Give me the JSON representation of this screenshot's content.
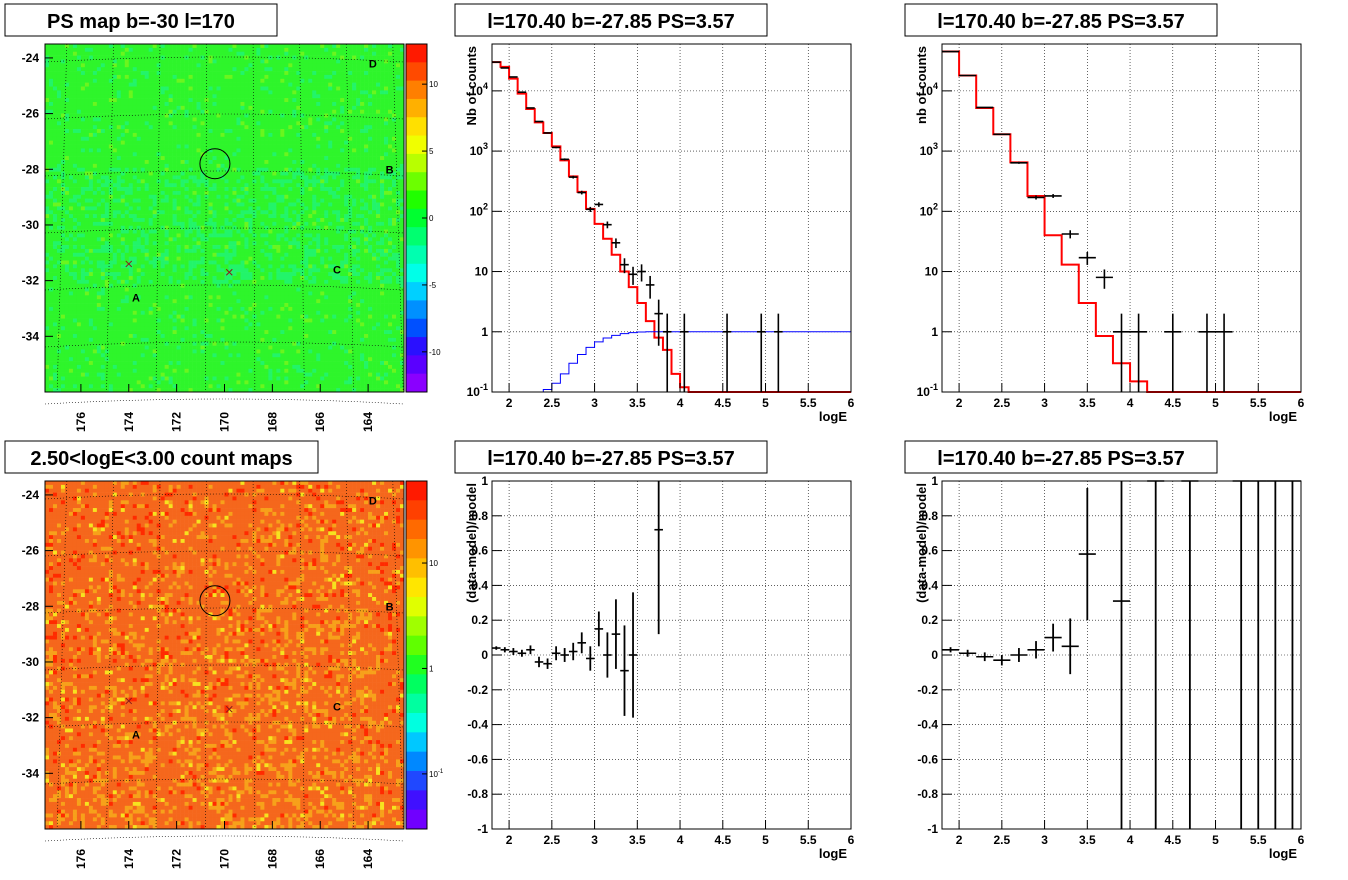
{
  "chart_data": [
    {
      "type": "heatmap",
      "title": "PS map b=-30 l=170",
      "x_tick_labels": [
        "176",
        "174",
        "172",
        "170",
        "168",
        "166",
        "164"
      ],
      "y_tick_labels": [
        "-24",
        "-26",
        "-28",
        "-30",
        "-32",
        "-34"
      ],
      "xlim": [
        177.5,
        162.5
      ],
      "ylim": [
        -36,
        -23.5
      ],
      "colorbar_ticks": [
        "10",
        "5",
        "0",
        "-5",
        "-10"
      ],
      "colorbar_range": [
        -13,
        13
      ],
      "colors": {
        "base": "#2ef52b",
        "cool": "#22f46a",
        "warm": "#6bf51e",
        "marker": "#8b1a1a"
      },
      "markers": [
        {
          "label": "D",
          "x": 163.8,
          "y": -24.2
        },
        {
          "label": "B",
          "x": 163.1,
          "y": -28.0
        },
        {
          "label": "C",
          "x": 165.3,
          "y": -31.6
        },
        {
          "label": "A",
          "x": 173.7,
          "y": -32.6
        }
      ],
      "crosses": [
        {
          "x": 174.0,
          "y": -31.4
        },
        {
          "x": 169.8,
          "y": -31.7
        }
      ],
      "circle": {
        "x": 170.4,
        "y": -27.8
      }
    },
    {
      "type": "line",
      "title": "l=170.40 b=-27.85 PS=3.57",
      "xlabel": "logE",
      "ylabel": "Nb of counts",
      "yscale": "log",
      "xlim": [
        1.8,
        6
      ],
      "ylim": [
        0.1,
        60000
      ],
      "x_tick_labels": [
        "2",
        "2.5",
        "3",
        "3.5",
        "4",
        "4.5",
        "5",
        "5.5",
        "6"
      ],
      "y_tick_labels": [
        "10^{-1}",
        "1",
        "10",
        "10^{2}",
        "10^{3}",
        "10^{4}"
      ],
      "colors": {
        "model": "#ff0000",
        "source": "#0000ff",
        "data": "#000000"
      },
      "series": [
        {
          "kind": "step",
          "x_start": 1.8,
          "width": 0.1,
          "values": [
            30000,
            25000,
            16000,
            9000,
            5000,
            3000,
            2000,
            1200,
            700,
            380,
            210,
            110,
            62,
            35,
            19,
            10,
            5.5,
            3,
            1.5,
            0.8,
            0.5,
            0.2,
            0.12,
            0.1,
            0.1,
            0.1,
            0.1,
            0.1,
            0.1,
            0.1,
            0.1,
            0.1,
            0.1,
            0.1,
            0.1,
            0.1,
            0.1,
            0.1,
            0.1,
            0.1,
            0.1,
            0.1
          ]
        },
        {
          "kind": "step",
          "x_start": 1.8,
          "width": 0.1,
          "values": [
            0.08,
            0.08,
            0.08,
            0.08,
            0.08,
            0.09,
            0.11,
            0.14,
            0.2,
            0.3,
            0.42,
            0.55,
            0.68,
            0.79,
            0.87,
            0.93,
            0.97,
            0.99,
            1,
            1,
            1,
            1,
            1,
            1,
            1,
            1,
            1,
            1,
            1,
            1,
            1,
            1,
            1,
            1,
            1,
            1,
            1,
            1,
            1,
            1,
            1,
            1
          ]
        },
        {
          "kind": "errorbar",
          "points": [
            [
              1.85,
              30000
            ],
            [
              1.95,
              24000
            ],
            [
              2.05,
              17000
            ],
            [
              2.15,
              9500
            ],
            [
              2.25,
              5200
            ],
            [
              2.35,
              3100
            ],
            [
              2.45,
              2000
            ],
            [
              2.55,
              1150
            ],
            [
              2.65,
              730
            ],
            [
              2.75,
              370
            ],
            [
              2.85,
              205
            ],
            [
              2.95,
              108
            ],
            [
              3.05,
              130
            ],
            [
              3.15,
              60
            ],
            [
              3.25,
              30
            ],
            [
              3.35,
              13
            ],
            [
              3.45,
              9
            ],
            [
              3.55,
              10
            ],
            [
              3.65,
              6
            ],
            [
              3.75,
              2
            ],
            [
              3.85,
              1
            ],
            [
              4.05,
              1
            ],
            [
              4.55,
              1
            ],
            [
              4.95,
              1
            ],
            [
              5.15,
              1
            ]
          ],
          "xerr": 0.05
        }
      ]
    },
    {
      "type": "line",
      "title": "l=170.40 b=-27.85 PS=3.57",
      "xlabel": "logE",
      "ylabel": "nb of counts",
      "yscale": "log",
      "xlim": [
        1.8,
        6
      ],
      "ylim": [
        0.1,
        60000
      ],
      "x_tick_labels": [
        "2",
        "2.5",
        "3",
        "3.5",
        "4",
        "4.5",
        "5",
        "5.5",
        "6"
      ],
      "y_tick_labels": [
        "10^{-1}",
        "1",
        "10",
        "10^{2}",
        "10^{3}",
        "10^{4}"
      ],
      "colors": {
        "model": "#ff0000",
        "data": "#000000"
      },
      "series": [
        {
          "kind": "step",
          "x_start": 1.8,
          "width": 0.2,
          "values": [
            45000,
            18000,
            5200,
            1900,
            650,
            180,
            40,
            13,
            3,
            0.85,
            0.3,
            0.15,
            0.1,
            0.1,
            0.1,
            0.1,
            0.1,
            0.1,
            0.1,
            0.1,
            0.1
          ]
        },
        {
          "kind": "errorbar",
          "points": [
            [
              1.9,
              45000
            ],
            [
              2.1,
              18000
            ],
            [
              2.3,
              5300
            ],
            [
              2.5,
              1900
            ],
            [
              2.7,
              640
            ],
            [
              2.9,
              170
            ],
            [
              3.1,
              180
            ],
            [
              3.3,
              42
            ],
            [
              3.5,
              17
            ],
            [
              3.7,
              8
            ],
            [
              3.9,
              1
            ],
            [
              4.1,
              1
            ],
            [
              4.5,
              1
            ],
            [
              4.9,
              1
            ],
            [
              5.1,
              1
            ]
          ],
          "xerr": 0.1
        }
      ]
    },
    {
      "type": "heatmap",
      "title": "2.50<logE<3.00 count maps",
      "x_tick_labels": [
        "176",
        "174",
        "172",
        "170",
        "168",
        "166",
        "164"
      ],
      "y_tick_labels": [
        "-24",
        "-26",
        "-28",
        "-30",
        "-32",
        "-34"
      ],
      "xlim": [
        177.5,
        162.5
      ],
      "ylim": [
        -36,
        -23.5
      ],
      "colorbar_ticks": [
        "10",
        "1",
        "10^{-1}"
      ],
      "colorbar_range": [
        0.03,
        60
      ],
      "colors": {
        "base": "#f5671c",
        "hot": "#ff2a00",
        "mid": "#f7a11a",
        "cool": "#f6e31f",
        "marker": "#8b1a1a"
      },
      "markers": [
        {
          "label": "D",
          "x": 163.8,
          "y": -24.2
        },
        {
          "label": "B",
          "x": 163.1,
          "y": -28.0
        },
        {
          "label": "C",
          "x": 165.3,
          "y": -31.6
        },
        {
          "label": "A",
          "x": 173.7,
          "y": -32.6
        }
      ],
      "crosses": [
        {
          "x": 174.0,
          "y": -31.4
        },
        {
          "x": 169.8,
          "y": -31.7
        }
      ],
      "circle": {
        "x": 170.4,
        "y": -27.8
      }
    },
    {
      "type": "scatter",
      "title": "l=170.40 b=-27.85 PS=3.57",
      "xlabel": "logE",
      "ylabel": "(data-model)/model",
      "xlim": [
        1.8,
        6
      ],
      "ylim": [
        -1,
        1
      ],
      "x_tick_labels": [
        "2",
        "2.5",
        "3",
        "3.5",
        "4",
        "4.5",
        "5",
        "5.5",
        "6"
      ],
      "y_tick_labels": [
        "-1",
        "-0.8",
        "-0.6",
        "-0.4",
        "-0.2",
        "0",
        "0.2",
        "0.4",
        "0.6",
        "0.8",
        "1"
      ],
      "colors": {
        "data": "#000000"
      },
      "points": [
        [
          1.85,
          0.04,
          0.01
        ],
        [
          1.95,
          0.03,
          0.015
        ],
        [
          2.05,
          0.02,
          0.02
        ],
        [
          2.15,
          0.01,
          0.02
        ],
        [
          2.25,
          0.03,
          0.025
        ],
        [
          2.35,
          -0.04,
          0.03
        ],
        [
          2.45,
          -0.05,
          0.03
        ],
        [
          2.55,
          0.01,
          0.04
        ],
        [
          2.65,
          0.0,
          0.04
        ],
        [
          2.75,
          0.02,
          0.05
        ],
        [
          2.85,
          0.07,
          0.06
        ],
        [
          2.95,
          -0.02,
          0.07
        ],
        [
          3.05,
          0.15,
          0.1
        ],
        [
          3.15,
          0.0,
          0.13
        ],
        [
          3.25,
          0.12,
          0.2
        ],
        [
          3.35,
          -0.09,
          0.26
        ],
        [
          3.45,
          0.0,
          0.36
        ],
        [
          3.75,
          0.72,
          0.6
        ]
      ],
      "xerr": 0.05
    },
    {
      "type": "scatter",
      "title": "l=170.40 b=-27.85 PS=3.57",
      "xlabel": "logE",
      "ylabel": "(data-model)/model",
      "xlim": [
        1.8,
        6
      ],
      "ylim": [
        -1,
        1
      ],
      "x_tick_labels": [
        "2",
        "2.5",
        "3",
        "3.5",
        "4",
        "4.5",
        "5",
        "5.5",
        "6"
      ],
      "y_tick_labels": [
        "-1",
        "-0.8",
        "-0.6",
        "-0.4",
        "-0.2",
        "0",
        "0.2",
        "0.4",
        "0.6",
        "0.8",
        "1"
      ],
      "colors": {
        "data": "#000000"
      },
      "points": [
        [
          1.9,
          0.03,
          0.015
        ],
        [
          2.1,
          0.01,
          0.02
        ],
        [
          2.3,
          -0.01,
          0.025
        ],
        [
          2.5,
          -0.03,
          0.03
        ],
        [
          2.7,
          0.0,
          0.04
        ],
        [
          2.9,
          0.03,
          0.05
        ],
        [
          3.1,
          0.1,
          0.08
        ],
        [
          3.3,
          0.05,
          0.16
        ],
        [
          3.5,
          0.58,
          0.38
        ],
        [
          3.9,
          0.31,
          2
        ],
        [
          4.3,
          1,
          2
        ],
        [
          4.7,
          1,
          2
        ],
        [
          5.3,
          1,
          2
        ],
        [
          5.5,
          1,
          2
        ],
        [
          5.7,
          1,
          2
        ],
        [
          5.9,
          1,
          2
        ]
      ],
      "xerr": 0.1
    }
  ]
}
